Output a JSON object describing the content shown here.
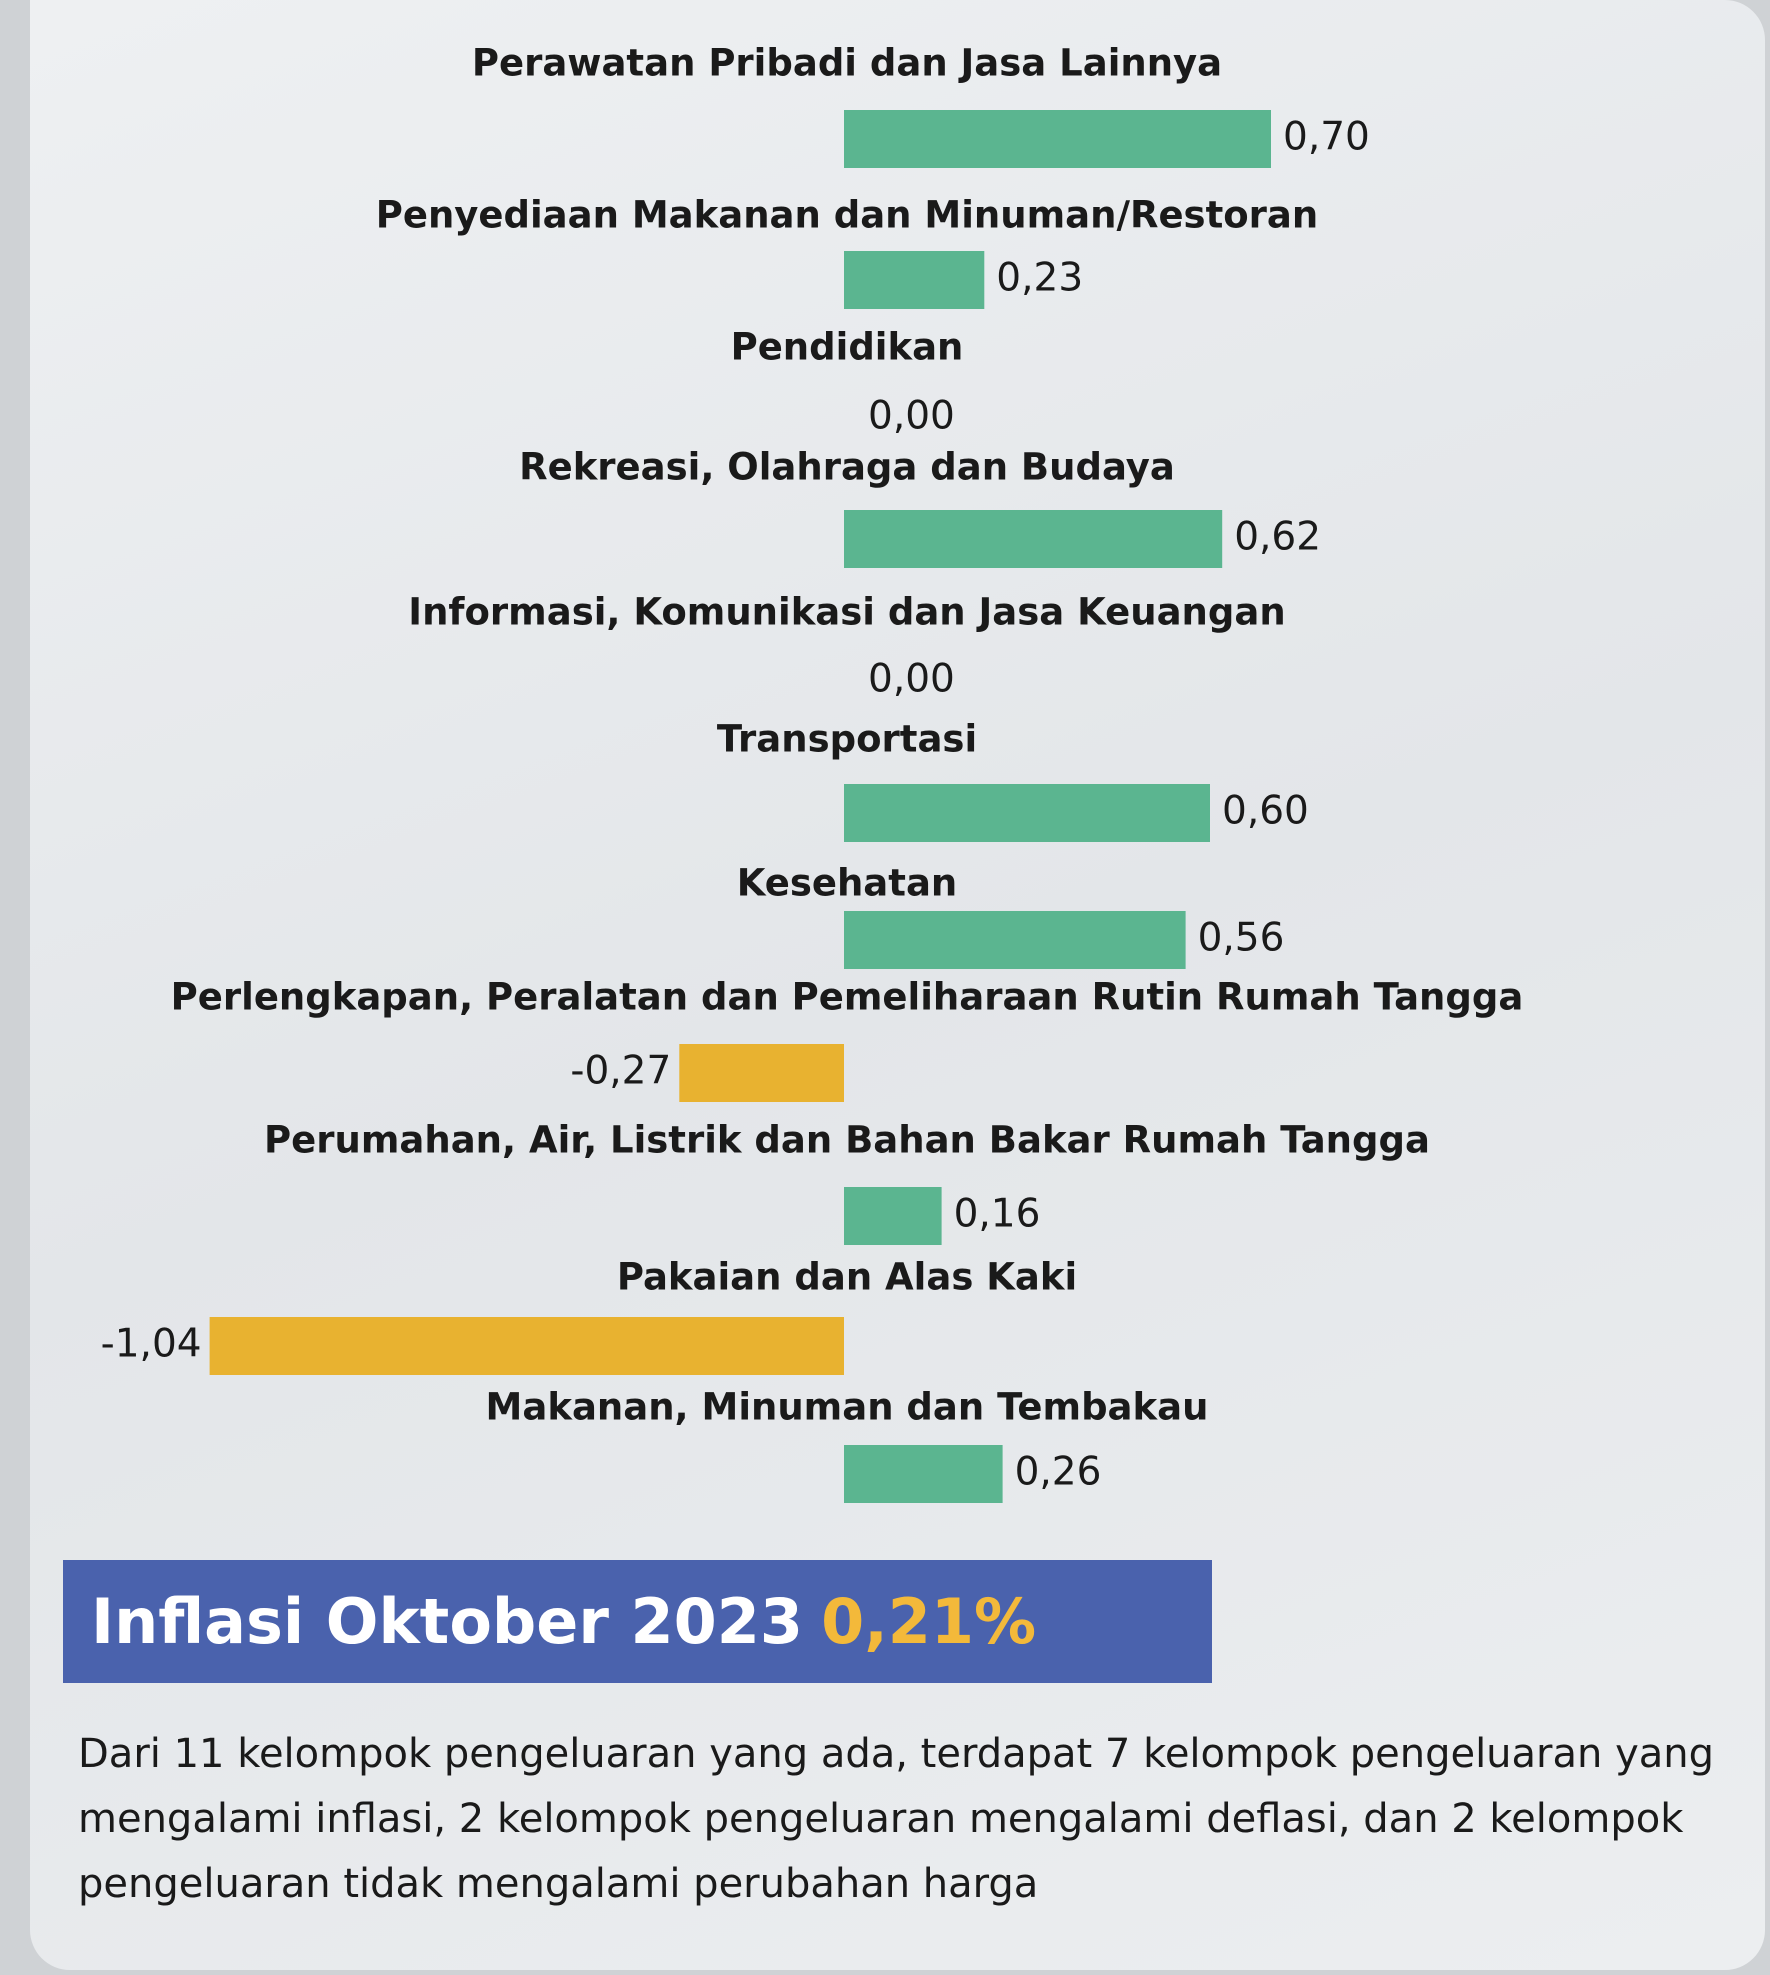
{
  "chart_data": {
    "type": "hbar",
    "categories": [
      "Perawatan Pribadi dan Jasa Lainnya",
      "Penyediaan Makanan dan Minuman/Restoran",
      "Pendidikan",
      "Rekreasi, Olahraga dan Budaya",
      "Informasi, Komunikasi dan Jasa Keuangan",
      "Transportasi",
      "Kesehatan",
      "Perlengkapan, Peralatan dan Pemeliharaan Rutin Rumah Tangga",
      "Perumahan, Air, Listrik dan Bahan Bakar Rumah Tangga",
      "Pakaian dan Alas Kaki",
      "Makanan, Minuman dan Tembakau"
    ],
    "values": [
      0.7,
      0.23,
      0.0,
      0.62,
      0.0,
      0.6,
      0.56,
      -0.27,
      0.16,
      -1.04,
      0.26
    ],
    "value_labels": [
      "0,70",
      "0,23",
      "0,00",
      "0,62",
      "0,00",
      "0,60",
      "0,56",
      "-0,27",
      "0,16",
      "-1,04",
      "0,26"
    ],
    "colors": [
      "#5bb590",
      "#5bb590",
      "#5bb590",
      "#5bb590",
      "#5bb590",
      "#5bb590",
      "#5bb590",
      "#e8b230",
      "#5bb590",
      "#e8b230",
      "#5bb590"
    ]
  },
  "headline": {
    "title": "Inflasi Oktober 2023",
    "value": "0,21%"
  },
  "description": "Dari 11 kelompok pengeluaran yang ada, terdapat 7 kelompok pengeluaran yang mengalami inflasi, 2 kelompok pengeluaran mengalami deflasi, dan 2 kelompok pengeluaran tidak mengalami perubahan harga"
}
